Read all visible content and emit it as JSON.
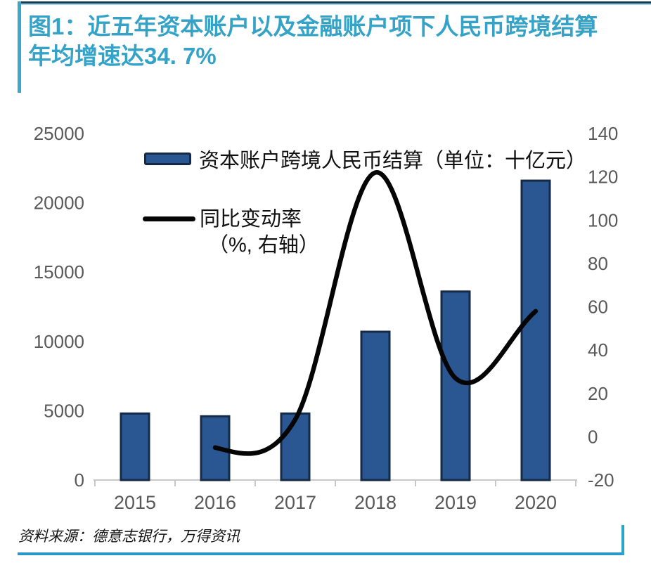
{
  "frame": {
    "title_line1": "图1：近五年资本账户以及金融账户项下人民币跨境结算",
    "title_line2": "年均增速达34. 7%",
    "source": "资料来源：德意志银行，万得资讯",
    "accent_teal": "#3aa7c9",
    "accent_navy": "#173a52",
    "accent_blue": "#2996cc"
  },
  "legend": {
    "bar_label": "资本账户跨境人民币结算（单位：十亿元）",
    "line_label": "同比变动率",
    "line_sublabel": "（%, 右轴）"
  },
  "chart_data": {
    "type": "bar+line combo",
    "title": "近五年资本账户以及金融账户项下人民币跨境结算年均增速达34.7%",
    "categories": [
      "2015",
      "2016",
      "2017",
      "2018",
      "2019",
      "2020"
    ],
    "series": [
      {
        "name": "资本账户跨境人民币结算（单位：十亿元）",
        "chart_type": "bar",
        "axis": "left",
        "values": [
          4800,
          4600,
          4800,
          10700,
          13600,
          21600
        ]
      },
      {
        "name": "同比变动率（%, 右轴）",
        "chart_type": "line",
        "axis": "right",
        "values": [
          null,
          -5,
          8,
          122,
          27,
          58
        ]
      }
    ],
    "left_axis": {
      "min": 0,
      "max": 25000,
      "step": 5000,
      "ticks": [
        "0",
        "5000",
        "10000",
        "15000",
        "20000",
        "25000"
      ]
    },
    "right_axis": {
      "min": -20,
      "max": 140,
      "step": 20,
      "ticks": [
        "-20",
        "0",
        "20",
        "40",
        "60",
        "80",
        "100",
        "120",
        "140"
      ]
    },
    "grid": false,
    "legend_position": "top-left inside plot",
    "colors": {
      "bar_fill": "#2a5792",
      "bar_border": "#152a47",
      "line": "#050505",
      "axis_text": "#595959",
      "axis_line": "#c8c8c8"
    }
  }
}
